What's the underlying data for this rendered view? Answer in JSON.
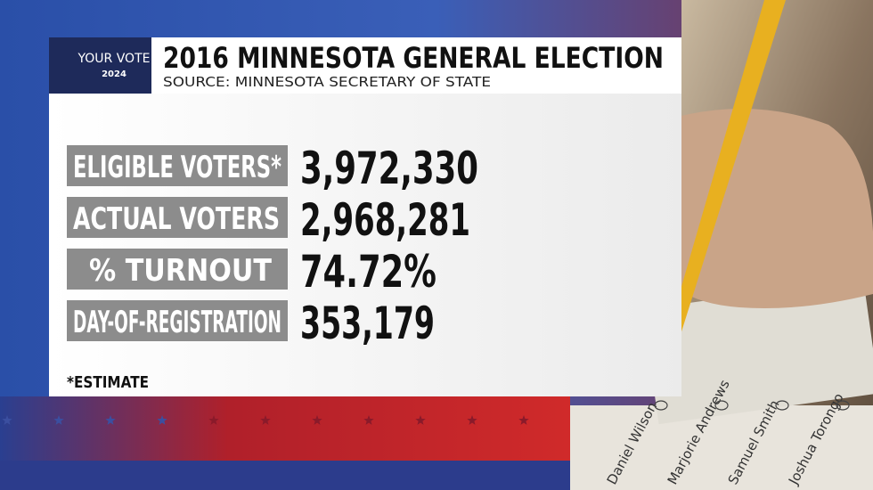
{
  "logo": {
    "line1": "YOUR VOTE",
    "line2": "2024"
  },
  "header": {
    "title": "2016 MINNESOTA GENERAL ELECTION",
    "source": "SOURCE: MINNESOTA SECRETARY OF STATE"
  },
  "table": {
    "rows": [
      [
        "ELIGIBLE VOTERS*",
        "3,972,330"
      ],
      [
        "ACTUAL VOTERS",
        "2,968,281"
      ],
      [
        "% TURNOUT",
        "74.72%"
      ],
      [
        "DAY-OF-REGISTRATION",
        "353,179"
      ]
    ]
  },
  "footnote": "*ESTIMATE",
  "ballot": {
    "names": [
      "Daniel Wilson",
      "Marjorie Andrews",
      "Samuel Smith",
      "Joshua Torongo"
    ]
  }
}
